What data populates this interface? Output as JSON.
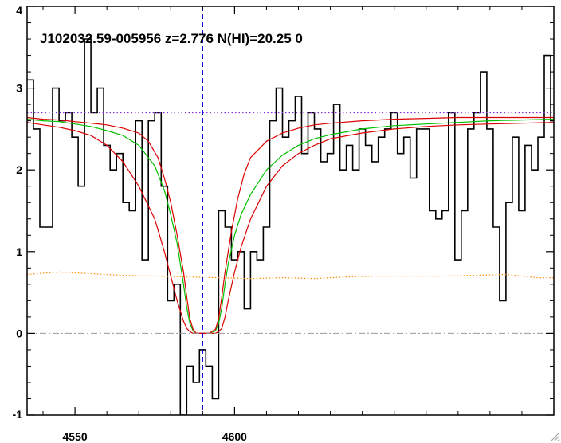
{
  "chart_data": {
    "type": "line",
    "title": "J102032.59-005956 z=2.776 N(HI)=20.25 0",
    "xlabel": "",
    "ylabel": "",
    "xlim": [
      4535,
      4700
    ],
    "ylim": [
      -1,
      4
    ],
    "x_ticks": [
      4550,
      4600
    ],
    "y_ticks": [
      -1,
      0,
      1,
      2,
      3,
      4
    ],
    "grid": false,
    "colors": {
      "flux": "#000000",
      "error": "#ff8c00",
      "continuum": "#8a2be2",
      "fit": "#00c000",
      "fit_bounds": "#dd0000",
      "zero": "#999999",
      "line_center": "#0000cc"
    },
    "reference_lines": {
      "continuum_level": 2.7,
      "zero_level": 0,
      "line_center": 4590
    },
    "series": [
      {
        "kind": "step",
        "color": "#000000",
        "x": [
          4535,
          4537,
          4539,
          4541,
          4543,
          4545,
          4547,
          4549,
          4551,
          4553,
          4555,
          4557,
          4559,
          4561,
          4563,
          4565,
          4567,
          4569,
          4571,
          4573,
          4575,
          4577,
          4579,
          4581,
          4583,
          4585,
          4587,
          4589,
          4591,
          4593,
          4595,
          4597,
          4599,
          4601,
          4603,
          4605,
          4607,
          4609,
          4611,
          4613,
          4615,
          4617,
          4619,
          4621,
          4623,
          4625,
          4627,
          4629,
          4631,
          4633,
          4635,
          4637,
          4639,
          4641,
          4643,
          4645,
          4647,
          4649,
          4651,
          4653,
          4655,
          4657,
          4659,
          4661,
          4663,
          4665,
          4667,
          4669,
          4671,
          4673,
          4675,
          4677,
          4679,
          4681,
          4683,
          4685,
          4687,
          4689,
          4691,
          4693,
          4695,
          4697,
          4699
        ],
        "values": [
          3.1,
          2.5,
          1.3,
          1.3,
          3.0,
          2.6,
          2.7,
          2.4,
          1.8,
          3.6,
          2.7,
          3.0,
          2.3,
          2.0,
          2.2,
          1.6,
          1.5,
          2.6,
          0.9,
          2.6,
          2.7,
          1.8,
          0.4,
          0.6,
          -1.0,
          -0.4,
          -0.6,
          -0.2,
          -0.4,
          -0.8,
          1.5,
          1.3,
          0.9,
          1.0,
          0.3,
          1.0,
          0.9,
          1.3,
          2.6,
          3.0,
          2.4,
          2.6,
          2.9,
          2.2,
          2.7,
          2.5,
          2.1,
          2.2,
          2.8,
          2.0,
          2.3,
          2.0,
          2.5,
          2.3,
          2.1,
          2.4,
          2.5,
          2.7,
          2.2,
          2.4,
          1.9,
          2.5,
          2.5,
          1.5,
          1.4,
          1.5,
          2.7,
          0.9,
          1.5,
          2.5,
          2.7,
          3.2,
          2.5,
          1.3,
          0.4,
          1.6,
          2.4,
          1.5,
          2.3,
          2.0,
          2.4,
          3.4,
          2.6
        ]
      },
      {
        "kind": "error",
        "color": "#ff8c00",
        "x": [
          4535,
          4545,
          4555,
          4565,
          4575,
          4585,
          4595,
          4605,
          4615,
          4625,
          4635,
          4645,
          4655,
          4665,
          4675,
          4685,
          4695,
          4700
        ],
        "values": [
          0.72,
          0.75,
          0.73,
          0.71,
          0.7,
          0.69,
          0.68,
          0.67,
          0.68,
          0.67,
          0.69,
          0.7,
          0.7,
          0.7,
          0.71,
          0.72,
          0.68,
          0.68
        ]
      },
      {
        "kind": "fit",
        "color": "#00c000",
        "x": [
          4535,
          4540,
          4545,
          4550,
          4555,
          4560,
          4565,
          4570,
          4575,
          4578,
          4580,
          4582,
          4584,
          4585,
          4586,
          4587,
          4588,
          4590,
          4592,
          4594,
          4595,
          4596,
          4597,
          4598,
          4600,
          4602,
          4605,
          4610,
          4615,
          4620,
          4625,
          4630,
          4640,
          4650,
          4660,
          4670,
          4680,
          4690,
          4700
        ],
        "values": [
          2.62,
          2.6,
          2.59,
          2.56,
          2.53,
          2.48,
          2.42,
          2.3,
          2.05,
          1.75,
          1.45,
          1.1,
          0.6,
          0.32,
          0.12,
          0.03,
          0.0,
          0.0,
          0.0,
          0.03,
          0.12,
          0.32,
          0.6,
          0.85,
          1.2,
          1.45,
          1.7,
          2.0,
          2.18,
          2.3,
          2.38,
          2.43,
          2.5,
          2.54,
          2.56,
          2.58,
          2.6,
          2.61,
          2.62
        ]
      },
      {
        "kind": "fit-upper",
        "color": "#dd0000",
        "x": [
          4535,
          4540,
          4545,
          4550,
          4555,
          4560,
          4565,
          4570,
          4573,
          4576,
          4578,
          4580,
          4582,
          4584,
          4585,
          4586,
          4587,
          4588,
          4590,
          4592,
          4594,
          4595,
          4596,
          4597,
          4598,
          4599,
          4601,
          4603,
          4605,
          4610,
          4615,
          4620,
          4625,
          4630,
          4640,
          4650,
          4660,
          4670,
          4680,
          4690,
          4700
        ],
        "values": [
          2.64,
          2.62,
          2.61,
          2.59,
          2.57,
          2.55,
          2.51,
          2.45,
          2.35,
          2.15,
          1.9,
          1.6,
          1.2,
          0.75,
          0.45,
          0.18,
          0.05,
          0.0,
          0.0,
          0.0,
          0.05,
          0.18,
          0.45,
          0.75,
          1.0,
          1.25,
          1.65,
          1.95,
          2.15,
          2.35,
          2.45,
          2.51,
          2.55,
          2.57,
          2.6,
          2.62,
          2.63,
          2.64,
          2.64,
          2.64,
          2.64
        ]
      },
      {
        "kind": "fit-lower",
        "color": "#dd0000",
        "x": [
          4535,
          4540,
          4545,
          4550,
          4555,
          4560,
          4565,
          4570,
          4575,
          4578,
          4580,
          4582,
          4584,
          4585,
          4586,
          4587,
          4588,
          4590,
          4592,
          4594,
          4595,
          4596,
          4597,
          4598,
          4600,
          4602,
          4605,
          4610,
          4615,
          4620,
          4625,
          4630,
          4640,
          4650,
          4660,
          4670,
          4680,
          4690,
          4700
        ],
        "values": [
          2.58,
          2.55,
          2.52,
          2.48,
          2.42,
          2.3,
          2.1,
          1.8,
          1.4,
          1.0,
          0.7,
          0.4,
          0.15,
          0.06,
          0.02,
          0.0,
          0.0,
          0.0,
          0.0,
          0.0,
          0.02,
          0.06,
          0.2,
          0.4,
          0.75,
          1.05,
          1.4,
          1.8,
          2.05,
          2.2,
          2.3,
          2.38,
          2.45,
          2.5,
          2.53,
          2.55,
          2.56,
          2.57,
          2.58
        ]
      }
    ]
  }
}
